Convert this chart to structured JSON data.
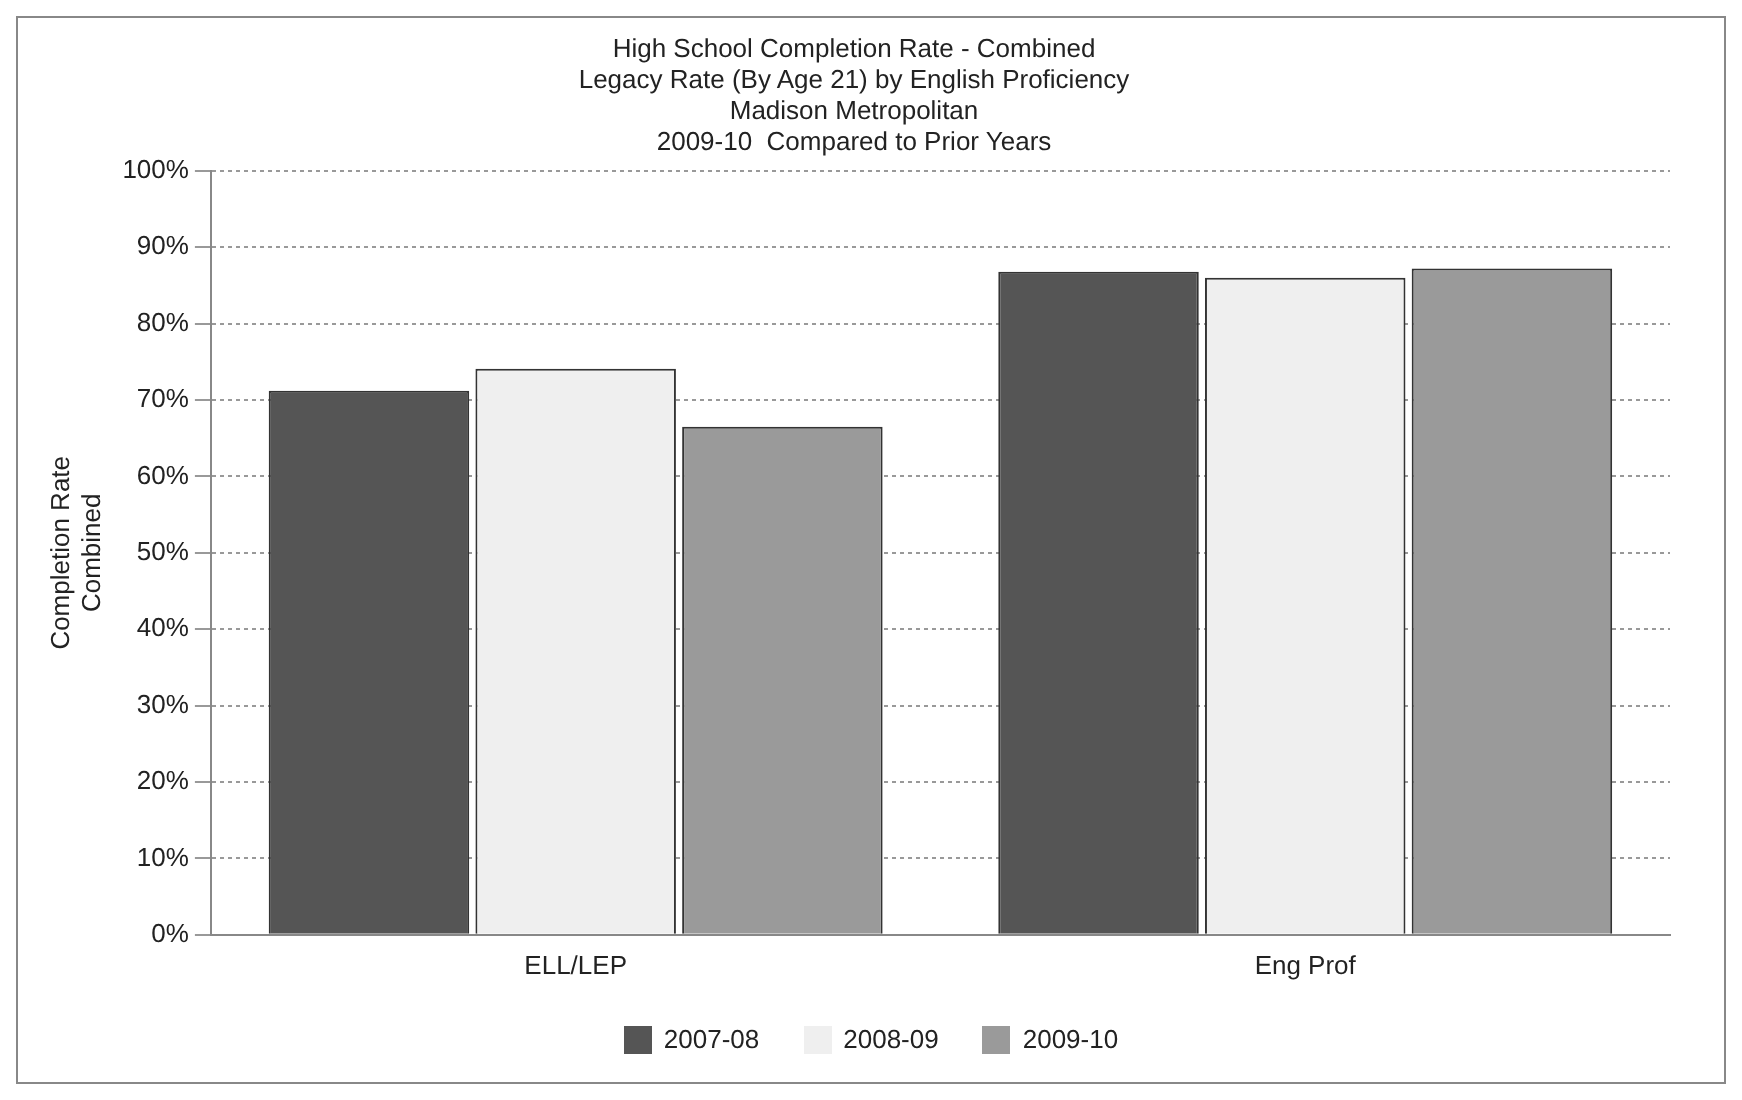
{
  "chart_data": {
    "type": "bar",
    "title": [
      "High School Completion Rate - Combined",
      "Legacy Rate (By Age 21) by English Proficiency",
      "Madison Metropolitan",
      "2009-10  Compared to Prior Years"
    ],
    "ylabel": [
      "Completion Rate",
      "Combined"
    ],
    "categories": [
      "ELL/LEP",
      "Eng Prof"
    ],
    "series": [
      {
        "name": "2007-08",
        "color": "#555555",
        "values": [
          71.2,
          86.8
        ]
      },
      {
        "name": "2008-09",
        "color": "#efefef",
        "values": [
          74.1,
          86.0
        ]
      },
      {
        "name": "2009-10",
        "color": "#9a9a9a",
        "values": [
          66.5,
          87.2
        ]
      }
    ],
    "ylim": [
      0,
      100
    ],
    "yticks": [
      {
        "value": 0,
        "label": "0%"
      },
      {
        "value": 10,
        "label": "10%"
      },
      {
        "value": 20,
        "label": "20%"
      },
      {
        "value": 30,
        "label": "30%"
      },
      {
        "value": 40,
        "label": "40%"
      },
      {
        "value": 50,
        "label": "50%"
      },
      {
        "value": 60,
        "label": "60%"
      },
      {
        "value": 70,
        "label": "70%"
      },
      {
        "value": 80,
        "label": "80%"
      },
      {
        "value": 90,
        "label": "90%"
      },
      {
        "value": 100,
        "label": "100%"
      }
    ],
    "grid": "y",
    "legend": "bottom"
  }
}
